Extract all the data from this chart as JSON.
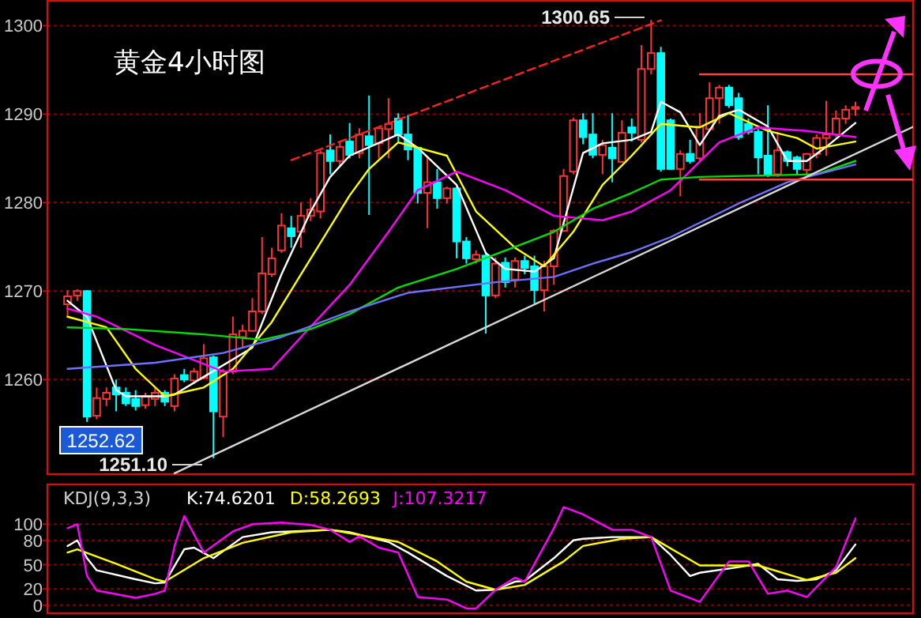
{
  "chart_data": [
    {
      "type": "candlestick",
      "title": "黄金4小时图",
      "categories": [
        null,
        null,
        null,
        null,
        null,
        null,
        null,
        null,
        null,
        null,
        null,
        null,
        null,
        null,
        null,
        null,
        null,
        null,
        null,
        null,
        null,
        null,
        null,
        null,
        null,
        null,
        null,
        null,
        null,
        null,
        null,
        null,
        null,
        null,
        null,
        null,
        null,
        null,
        null,
        null,
        null,
        null,
        null,
        null,
        null,
        null,
        null,
        null,
        null,
        null,
        null,
        null,
        null,
        null,
        null,
        null,
        null,
        null,
        null,
        null,
        null,
        null,
        null,
        null,
        null,
        null,
        null,
        null,
        null,
        null,
        null,
        null,
        null,
        null,
        null,
        null,
        null,
        null,
        null,
        null,
        null,
        null,
        null,
        null,
        null,
        null,
        null,
        null
      ],
      "ohlc": [
        [
          1268.5,
          1270.1,
          1267.1,
          1269.4
        ],
        [
          1269.5,
          1270.2,
          1268.9,
          1270.0
        ],
        [
          1270.0,
          1270.1,
          1255.2,
          1255.8
        ],
        [
          1255.9,
          1259.1,
          1255.5,
          1257.9
        ],
        [
          1257.8,
          1259.1,
          1257.0,
          1258.5
        ],
        [
          1259.1,
          1260.0,
          1256.4,
          1258.3
        ],
        [
          1258.5,
          1259.1,
          1257.0,
          1257.3
        ],
        [
          1257.8,
          1258.8,
          1256.5,
          1257.0
        ],
        [
          1257.1,
          1258.5,
          1256.7,
          1258.1
        ],
        [
          1257.8,
          1259.1,
          1257.0,
          1258.5
        ],
        [
          1258.5,
          1258.8,
          1257.0,
          1257.5
        ],
        [
          1257.0,
          1260.6,
          1256.4,
          1260.1
        ],
        [
          1260.5,
          1261.2,
          1259.7,
          1260.0
        ],
        [
          1259.9,
          1261.3,
          1259.5,
          1260.9
        ],
        [
          1260.2,
          1264.0,
          1260.0,
          1262.4
        ],
        [
          1262.5,
          1262.7,
          1251.1,
          1256.4
        ],
        [
          1255.8,
          1261.2,
          1253.5,
          1260.9
        ],
        [
          1260.9,
          1267.1,
          1260.6,
          1265.1
        ],
        [
          1264.8,
          1266.2,
          1263.6,
          1265.5
        ],
        [
          1265.5,
          1269.2,
          1265.4,
          1267.7
        ],
        [
          1267.7,
          1276.1,
          1267.4,
          1272.0
        ],
        [
          1271.9,
          1274.9,
          1271.6,
          1273.7
        ],
        [
          1274.6,
          1278.8,
          1274.3,
          1277.4
        ],
        [
          1277.1,
          1278.5,
          1274.9,
          1276.2
        ],
        [
          1276.7,
          1280.0,
          1274.9,
          1278.5
        ],
        [
          1278.5,
          1280.5,
          1277.9,
          1279.2
        ],
        [
          1279.0,
          1285.9,
          1278.2,
          1285.6
        ],
        [
          1285.9,
          1287.7,
          1283.2,
          1284.7
        ],
        [
          1284.7,
          1286.9,
          1284.1,
          1286.3
        ],
        [
          1286.9,
          1289.0,
          1285.0,
          1285.4
        ],
        [
          1285.6,
          1288.4,
          1285.0,
          1287.7
        ],
        [
          1287.5,
          1292.1,
          1278.6,
          1286.5
        ],
        [
          1286.7,
          1288.6,
          1285.0,
          1288.4
        ],
        [
          1288.3,
          1291.8,
          1285.0,
          1288.9
        ],
        [
          1289.5,
          1290.1,
          1286.9,
          1287.7
        ],
        [
          1287.7,
          1289.9,
          1284.8,
          1286.0
        ],
        [
          1286.2,
          1286.3,
          1279.9,
          1281.1
        ],
        [
          1281.1,
          1285.2,
          1277.1,
          1282.3
        ],
        [
          1282.3,
          1283.8,
          1279.3,
          1280.5
        ],
        [
          1280.5,
          1281.8,
          1279.9,
          1281.6
        ],
        [
          1281.6,
          1281.8,
          1273.7,
          1275.6
        ],
        [
          1275.6,
          1276.1,
          1273.1,
          1273.7
        ],
        [
          1273.6,
          1274.6,
          1273.1,
          1274.1
        ],
        [
          1274.0,
          1274.4,
          1265.2,
          1269.5
        ],
        [
          1269.5,
          1273.8,
          1269.2,
          1273.1
        ],
        [
          1273.2,
          1273.8,
          1270.4,
          1271.0
        ],
        [
          1271.3,
          1273.8,
          1270.4,
          1273.4
        ],
        [
          1273.4,
          1274.0,
          1271.9,
          1272.6
        ],
        [
          1272.8,
          1274.0,
          1268.6,
          1270.1
        ],
        [
          1270.1,
          1273.4,
          1267.7,
          1272.8
        ],
        [
          1272.8,
          1277.0,
          1270.7,
          1276.8
        ],
        [
          1276.8,
          1283.8,
          1276.7,
          1283.0
        ],
        [
          1283.5,
          1289.6,
          1283.2,
          1289.3
        ],
        [
          1289.3,
          1290.1,
          1286.6,
          1287.4
        ],
        [
          1287.7,
          1290.1,
          1285.0,
          1285.4
        ],
        [
          1285.4,
          1287.1,
          1283.2,
          1286.5
        ],
        [
          1286.2,
          1290.1,
          1282.3,
          1285.0
        ],
        [
          1284.6,
          1289.3,
          1284.5,
          1287.9
        ],
        [
          1288.5,
          1289.5,
          1286.9,
          1287.9
        ],
        [
          1287.1,
          1297.8,
          1286.8,
          1295.1
        ],
        [
          1295.1,
          1300.65,
          1294.5,
          1296.9
        ],
        [
          1296.9,
          1297.6,
          1283.5,
          1283.8
        ],
        [
          1289.3,
          1289.5,
          1283.7,
          1283.8
        ],
        [
          1283.8,
          1285.9,
          1280.7,
          1285.5
        ],
        [
          1285.5,
          1287.1,
          1284.4,
          1284.7
        ],
        [
          1285.0,
          1290.1,
          1284.7,
          1288.6
        ],
        [
          1288.3,
          1293.6,
          1288.0,
          1291.8
        ],
        [
          1291.8,
          1293.3,
          1288.9,
          1293.0
        ],
        [
          1293.0,
          1293.3,
          1290.7,
          1291.0
        ],
        [
          1291.8,
          1292.4,
          1287.1,
          1287.4
        ],
        [
          1288.9,
          1289.5,
          1287.7,
          1288.0
        ],
        [
          1288.0,
          1288.3,
          1283.2,
          1285.1
        ],
        [
          1285.3,
          1291.0,
          1282.9,
          1283.2
        ],
        [
          1283.2,
          1288.0,
          1282.9,
          1285.9
        ],
        [
          1285.7,
          1285.9,
          1284.1,
          1284.7
        ],
        [
          1285.1,
          1285.3,
          1283.2,
          1283.8
        ],
        [
          1283.7,
          1285.6,
          1283.2,
          1285.5
        ],
        [
          1285.5,
          1287.7,
          1285.0,
          1287.3
        ],
        [
          1287.3,
          1291.5,
          1285.3,
          1287.7
        ],
        [
          1287.7,
          1290.4,
          1287.4,
          1289.5
        ],
        [
          1289.5,
          1291.0,
          1288.9,
          1290.5
        ],
        [
          1290.6,
          1291.4,
          1289.8,
          1290.8
        ],
        null,
        null,
        null,
        null,
        null,
        null
      ],
      "colors": [
        "#ff3333",
        "#ff3333",
        "#00ffff",
        "#ff3333",
        "#ff3333",
        "#00ffff",
        "#00ffff",
        "#00ffff",
        "#ff3333",
        "#ff3333",
        "#00ffff",
        "#ff3333",
        "#00ffff",
        "#ff3333",
        "#ff3333",
        "#00ffff",
        "#ff3333",
        "#ff3333",
        "#ff3333",
        "#ff3333",
        "#ff3333",
        "#ff3333",
        "#ff3333",
        "#00ffff",
        "#ff3333",
        "#ff3333",
        "#ff3333",
        "#00ffff",
        "#ff3333",
        "#00ffff",
        "#ff3333",
        "#00ffff",
        "#ff3333",
        "#ff3333",
        "#00ffff",
        "#00ffff",
        "#00ffff",
        "#ff3333",
        "#00ffff",
        "#ff3333",
        "#00ffff",
        "#00ffff",
        "#ff3333",
        "#00ffff",
        "#ff3333",
        "#00ffff",
        "#ff3333",
        "#00ffff",
        "#00ffff",
        "#ff3333",
        "#ff3333",
        "#ff3333",
        "#ff3333",
        "#00ffff",
        "#00ffff",
        "#ff3333",
        "#00ffff",
        "#ff3333",
        "#00ffff",
        "#ff3333",
        "#ff3333",
        "#00ffff",
        "#00ffff",
        "#ff3333",
        "#00ffff",
        "#ff3333",
        "#ff3333",
        "#ff3333",
        "#00ffff",
        "#00ffff",
        "#00ffff",
        "#00ffff",
        "#00ffff",
        "#ff3333",
        "#00ffff",
        "#00ffff",
        "#ff3333",
        "#ff3333",
        "#ff3333",
        "#ff3333",
        "#ff3333",
        "#ff3333",
        null,
        null,
        null,
        null,
        null,
        null
      ],
      "ylim": [
        1249.3,
        1302.9
      ],
      "yticks": [
        1260,
        1270,
        1280,
        1290,
        1300
      ],
      "grid": "y",
      "series": [
        {
          "type": "line",
          "color": "#ffffff",
          "values": [
            1268.9,
            null,
            1267.1,
            null,
            null,
            1258.8,
            1258.1,
            null,
            null,
            null,
            1258.1,
            1258.3,
            null,
            null,
            1260.3,
            null,
            null,
            null,
            null,
            1263.6,
            null,
            null,
            1271.9,
            null,
            null,
            1279.0,
            null,
            1282.9,
            null,
            1285.3,
            null,
            null,
            null,
            null,
            1287.7,
            null,
            1286.2,
            null,
            null,
            null,
            1282.0,
            null,
            null,
            1274.3,
            null,
            1272.5,
            null,
            null,
            1272.2,
            null,
            1273.7,
            null,
            null,
            1285.6,
            null,
            1286.7,
            null,
            null,
            1287.1,
            null,
            1288.0,
            1291.4,
            null,
            1290.2,
            null,
            1286.5,
            null,
            1289.8,
            null,
            1290.5,
            null,
            null,
            1288.6,
            null,
            1284.7,
            null,
            1284.7,
            null,
            1286.3,
            null,
            null,
            1289.0,
            null,
            null,
            null,
            null,
            null,
            null
          ]
        },
        {
          "type": "line",
          "color": "#ffff00",
          "values": [
            1267.1,
            null,
            null,
            null,
            1265.9,
            null,
            null,
            1261.2,
            null,
            null,
            1258.1,
            null,
            null,
            null,
            1259.1,
            null,
            null,
            1261.2,
            null,
            null,
            null,
            1266.5,
            null,
            null,
            1271.9,
            null,
            null,
            null,
            null,
            1280.8,
            null,
            1283.8,
            null,
            null,
            1286.8,
            null,
            null,
            null,
            null,
            1285.3,
            null,
            null,
            1279.0,
            null,
            null,
            null,
            1274.9,
            null,
            null,
            1272.8,
            null,
            null,
            1276.7,
            null,
            null,
            1282.0,
            null,
            null,
            1285.3,
            null,
            null,
            1288.9,
            null,
            null,
            null,
            1288.5,
            null,
            null,
            1290.1,
            null,
            null,
            null,
            1288.1,
            null,
            null,
            1287.3,
            null,
            1286.1,
            null,
            null,
            null,
            1286.9,
            null,
            null,
            null,
            null,
            null,
            null
          ]
        },
        {
          "type": "line",
          "color": "#ff00ff",
          "values": [
            1268.0,
            null,
            null,
            1267.1,
            null,
            null,
            null,
            null,
            null,
            1263.9,
            null,
            null,
            null,
            null,
            null,
            null,
            1260.9,
            null,
            null,
            null,
            null,
            1261.2,
            null,
            null,
            1264.8,
            null,
            null,
            null,
            null,
            1270.7,
            null,
            null,
            null,
            1276.7,
            null,
            null,
            1281.4,
            null,
            null,
            null,
            1283.5,
            null,
            null,
            null,
            null,
            1281.4,
            null,
            null,
            null,
            null,
            1278.5,
            null,
            null,
            null,
            null,
            1278.0,
            null,
            null,
            1279.0,
            null,
            null,
            null,
            1281.4,
            null,
            null,
            null,
            null,
            1286.8,
            null,
            null,
            null,
            1288.5,
            null,
            null,
            null,
            null,
            1288.1,
            null,
            null,
            null,
            null,
            1287.4,
            null,
            null,
            null,
            null,
            null,
            null
          ]
        },
        {
          "type": "line",
          "color": "#00dd00",
          "values": [
            1265.9,
            null,
            null,
            null,
            null,
            null,
            1265.7,
            null,
            null,
            null,
            null,
            null,
            null,
            null,
            1265.1,
            null,
            null,
            null,
            null,
            null,
            1264.5,
            null,
            null,
            null,
            null,
            1265.7,
            null,
            null,
            null,
            1267.4,
            null,
            null,
            null,
            null,
            1270.4,
            null,
            null,
            null,
            null,
            null,
            1272.5,
            null,
            null,
            null,
            null,
            null,
            1275.0,
            null,
            null,
            null,
            1276.7,
            null,
            null,
            null,
            1279.3,
            null,
            null,
            null,
            1281.1,
            null,
            null,
            1282.6,
            null,
            null,
            null,
            1282.9,
            null,
            null,
            null,
            null,
            null,
            null,
            null,
            null,
            null,
            null,
            null,
            1283.2,
            null,
            null,
            null,
            1284.7,
            null,
            null,
            null,
            null,
            null,
            null
          ]
        },
        {
          "type": "line",
          "color": "#7070ff",
          "values": [
            1261.2,
            null,
            null,
            null,
            null,
            null,
            null,
            null,
            null,
            1261.9,
            null,
            null,
            null,
            null,
            null,
            null,
            1263.0,
            null,
            null,
            null,
            null,
            null,
            1264.8,
            null,
            null,
            null,
            null,
            null,
            null,
            1267.7,
            null,
            null,
            null,
            null,
            null,
            1269.8,
            null,
            null,
            null,
            null,
            null,
            null,
            null,
            null,
            1271.0,
            null,
            null,
            null,
            null,
            null,
            1271.6,
            null,
            null,
            null,
            1273.1,
            null,
            null,
            null,
            1274.4,
            null,
            null,
            null,
            1276.1,
            null,
            null,
            null,
            null,
            null,
            null,
            1279.9,
            null,
            null,
            null,
            null,
            1282.3,
            null,
            null,
            null,
            null,
            null,
            null,
            1284.3,
            null,
            null,
            null,
            null,
            null,
            null
          ]
        },
        {
          "type": "line",
          "color": "#d8d8d8",
          "values": [
            null,
            null,
            null,
            null,
            null,
            null,
            null,
            null,
            null,
            null,
            null,
            1249.4,
            null,
            null,
            null,
            null,
            null,
            null,
            null,
            null,
            null,
            null,
            null,
            null,
            null,
            null,
            null,
            null,
            null,
            null,
            null,
            null,
            null,
            null,
            null,
            null,
            null,
            null,
            null,
            null,
            null,
            null,
            null,
            null,
            null,
            null,
            null,
            null,
            null,
            null,
            null,
            null,
            null,
            null,
            null,
            null,
            null,
            null,
            null,
            null,
            null,
            null,
            null,
            null,
            null,
            null,
            null,
            null,
            null,
            null,
            null,
            null,
            null,
            null,
            null,
            null,
            null,
            null,
            null,
            null,
            null,
            null,
            null,
            null,
            null,
            null,
            null,
            1288.6
          ]
        },
        {
          "type": "line",
          "color": "#ff2020",
          "line_style": "dashed",
          "values": [
            null,
            null,
            null,
            null,
            null,
            null,
            null,
            null,
            null,
            null,
            null,
            null,
            null,
            null,
            null,
            null,
            null,
            null,
            null,
            null,
            null,
            null,
            null,
            1284.8,
            null,
            null,
            null,
            null,
            null,
            null,
            null,
            null,
            null,
            null,
            null,
            null,
            null,
            null,
            null,
            null,
            null,
            null,
            null,
            null,
            null,
            null,
            null,
            null,
            null,
            null,
            null,
            null,
            null,
            null,
            null,
            null,
            null,
            null,
            null,
            null,
            null,
            1300.6,
            null,
            null,
            null,
            null,
            null,
            null,
            null,
            null,
            null,
            null,
            null,
            null,
            null,
            null,
            null,
            null,
            null,
            null,
            null,
            null,
            null,
            null,
            null,
            null,
            null,
            null
          ]
        },
        {
          "type": "line",
          "color": "#ff4444",
          "values": [
            null,
            null,
            null,
            null,
            null,
            null,
            null,
            null,
            null,
            null,
            null,
            null,
            null,
            null,
            null,
            null,
            null,
            null,
            null,
            null,
            null,
            null,
            null,
            null,
            null,
            null,
            null,
            null,
            null,
            null,
            null,
            null,
            null,
            null,
            null,
            null,
            null,
            null,
            null,
            null,
            null,
            null,
            null,
            null,
            null,
            null,
            null,
            null,
            null,
            null,
            null,
            null,
            null,
            null,
            null,
            null,
            null,
            null,
            null,
            null,
            null,
            null,
            null,
            null,
            null,
            1294.5,
            null,
            null,
            null,
            null,
            null,
            null,
            null,
            null,
            null,
            null,
            null,
            null,
            null,
            null,
            null,
            null,
            null,
            null,
            null,
            null,
            null,
            1294.5
          ]
        },
        {
          "type": "line",
          "color": "#ff4444",
          "values": [
            null,
            null,
            null,
            null,
            null,
            null,
            null,
            null,
            null,
            null,
            null,
            null,
            null,
            null,
            null,
            null,
            null,
            null,
            null,
            null,
            null,
            null,
            null,
            null,
            null,
            null,
            null,
            null,
            null,
            null,
            null,
            null,
            null,
            null,
            null,
            null,
            null,
            null,
            null,
            null,
            null,
            null,
            null,
            null,
            null,
            null,
            null,
            null,
            null,
            null,
            null,
            null,
            null,
            null,
            null,
            null,
            null,
            null,
            null,
            null,
            null,
            null,
            null,
            null,
            null,
            1282.6,
            null,
            null,
            null,
            null,
            null,
            null,
            null,
            null,
            null,
            null,
            null,
            null,
            null,
            null,
            null,
            null,
            null,
            null,
            null,
            null,
            null,
            1282.6
          ]
        }
      ],
      "annotations": [
        "1300.65",
        "1251.10",
        "1252.62"
      ]
    },
    {
      "type": "line",
      "title": "KDJ(9,3,3)",
      "categories": [
        null,
        null,
        null,
        null,
        null,
        null,
        null,
        null,
        null,
        null,
        null,
        null,
        null,
        null,
        null,
        null,
        null,
        null,
        null,
        null,
        null,
        null,
        null,
        null,
        null,
        null,
        null,
        null,
        null,
        null,
        null,
        null,
        null,
        null,
        null,
        null,
        null,
        null,
        null,
        null,
        null,
        null,
        null,
        null,
        null,
        null,
        null,
        null,
        null,
        null,
        null,
        null,
        null,
        null,
        null,
        null,
        null,
        null,
        null,
        null,
        null,
        null,
        null,
        null,
        null,
        null,
        null,
        null,
        null,
        null,
        null,
        null,
        null,
        null,
        null,
        null,
        null,
        null,
        null,
        null,
        null,
        null,
        null,
        null,
        null,
        null,
        null,
        null
      ],
      "ylim": [
        -10,
        150
      ],
      "yticks": [
        0,
        20,
        50,
        80,
        100
      ],
      "grid": "y",
      "legend": "top left",
      "series": [
        {
          "name": "K:74.6201",
          "color": "#ffffff",
          "values": [
            73,
            80,
            58,
            43,
            null,
            null,
            null,
            32,
            null,
            27,
            28,
            null,
            69,
            71,
            null,
            58,
            null,
            null,
            84,
            null,
            null,
            90,
            null,
            null,
            null,
            null,
            null,
            93,
            null,
            90,
            null,
            null,
            null,
            78,
            null,
            65,
            null,
            null,
            null,
            36,
            null,
            null,
            18,
            null,
            19,
            null,
            29,
            30,
            null,
            null,
            58,
            null,
            80,
            82,
            null,
            null,
            84,
            null,
            null,
            null,
            84,
            null,
            62,
            null,
            36,
            40,
            null,
            null,
            null,
            47,
            null,
            51,
            null,
            32,
            null,
            30,
            null,
            32,
            null,
            43,
            null,
            75,
            null,
            null,
            null,
            null,
            null,
            null
          ]
        },
        {
          "name": "D:58.2693",
          "color": "#ffff00",
          "values": [
            65,
            69,
            null,
            null,
            null,
            51,
            null,
            null,
            null,
            32,
            29,
            null,
            null,
            null,
            58,
            null,
            null,
            null,
            77,
            null,
            null,
            null,
            null,
            90,
            null,
            null,
            null,
            93,
            null,
            null,
            null,
            null,
            null,
            null,
            78,
            null,
            null,
            null,
            54,
            null,
            null,
            29,
            null,
            null,
            19,
            null,
            null,
            25,
            null,
            null,
            null,
            54,
            null,
            73,
            null,
            null,
            null,
            82,
            null,
            null,
            84,
            null,
            null,
            null,
            null,
            49,
            null,
            null,
            null,
            49,
            null,
            49,
            null,
            null,
            null,
            null,
            31,
            null,
            null,
            40,
            null,
            58,
            null,
            null,
            null,
            null,
            null,
            null
          ]
        },
        {
          "name": "J:107.3217",
          "color": "#ff00ff",
          "values": [
            95,
            100,
            36,
            18,
            null,
            null,
            null,
            9,
            null,
            14,
            18,
            73,
            110,
            null,
            65,
            null,
            null,
            91,
            null,
            100,
            null,
            null,
            102,
            null,
            null,
            99,
            null,
            93,
            null,
            78,
            85,
            null,
            71,
            null,
            65,
            null,
            10,
            null,
            null,
            7,
            null,
            -4,
            -4,
            null,
            19,
            null,
            34,
            29,
            null,
            null,
            95,
            121,
            null,
            112,
            null,
            null,
            93,
            null,
            93,
            null,
            84,
            null,
            18,
            null,
            null,
            4,
            null,
            null,
            54,
            null,
            54,
            null,
            14,
            null,
            18,
            null,
            10,
            null,
            null,
            47,
            null,
            107,
            null,
            null,
            null,
            null,
            null,
            null
          ]
        }
      ]
    }
  ]
}
